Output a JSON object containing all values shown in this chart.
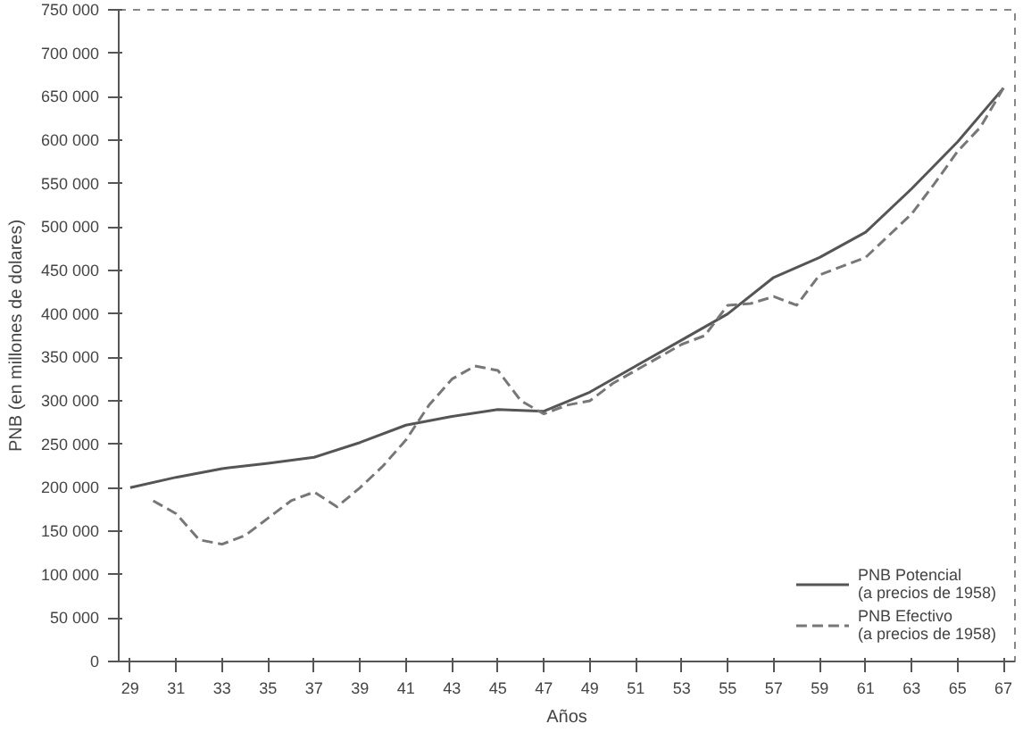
{
  "chart_data": {
    "type": "line",
    "xlabel": "Años",
    "ylabel": "PNB (en millones de dolares)",
    "xlim": [
      28.5,
      67.5
    ],
    "xticks": [
      {
        "value": 29,
        "label": "29"
      },
      {
        "value": 31,
        "label": "31"
      },
      {
        "value": 33,
        "label": "33"
      },
      {
        "value": 35,
        "label": "35"
      },
      {
        "value": 37,
        "label": "37"
      },
      {
        "value": 39,
        "label": "39"
      },
      {
        "value": 41,
        "label": "41"
      },
      {
        "value": 43,
        "label": "43"
      },
      {
        "value": 45,
        "label": "45"
      },
      {
        "value": 47,
        "label": "47"
      },
      {
        "value": 49,
        "label": "49"
      },
      {
        "value": 51,
        "label": "51"
      },
      {
        "value": 53,
        "label": "53"
      },
      {
        "value": 55,
        "label": "55"
      },
      {
        "value": 57,
        "label": "57"
      },
      {
        "value": 59,
        "label": "59"
      },
      {
        "value": 61,
        "label": "61"
      },
      {
        "value": 63,
        "label": "63"
      },
      {
        "value": 65,
        "label": "65"
      },
      {
        "value": 67,
        "label": "67"
      }
    ],
    "ylim": [
      0,
      750000
    ],
    "yticks": [
      {
        "value": 0,
        "label": "0"
      },
      {
        "value": 50000,
        "label": "50 000"
      },
      {
        "value": 100000,
        "label": "100 000"
      },
      {
        "value": 150000,
        "label": "150 000"
      },
      {
        "value": 200000,
        "label": "200 000"
      },
      {
        "value": 250000,
        "label": "250 000"
      },
      {
        "value": 300000,
        "label": "300 000"
      },
      {
        "value": 350000,
        "label": "350 000"
      },
      {
        "value": 400000,
        "label": "400 000"
      },
      {
        "value": 450000,
        "label": "450 000"
      },
      {
        "value": 500000,
        "label": "500 000"
      },
      {
        "value": 550000,
        "label": "550 000"
      },
      {
        "value": 600000,
        "label": "600 000"
      },
      {
        "value": 650000,
        "label": "650 000"
      },
      {
        "value": 700000,
        "label": "700 000"
      },
      {
        "value": 750000,
        "label": "750 000"
      }
    ],
    "grid": false,
    "legend": "bottom right",
    "series": [
      {
        "name": "PNB Potencial\n(a precios de 1958)",
        "color": "#555555",
        "line_style": "solid",
        "x": [
          29,
          31,
          33,
          35,
          37,
          39,
          41,
          43,
          45,
          47,
          49,
          51,
          53,
          55,
          57,
          59,
          61,
          63,
          65,
          67
        ],
        "values": [
          200000,
          212000,
          222000,
          228000,
          235000,
          252000,
          272000,
          282000,
          290000,
          288000,
          310000,
          340000,
          370000,
          400000,
          442000,
          465000,
          494000,
          544000,
          598000,
          660000
        ]
      },
      {
        "name": "PNB Efectivo\n(a precios de 1958)",
        "color": "#777777",
        "line_style": "dashed",
        "x": [
          30,
          31,
          32,
          33,
          34,
          35,
          36,
          37,
          38,
          39,
          40,
          41,
          42,
          43,
          44,
          45,
          46,
          47,
          48,
          49,
          50,
          51,
          52,
          53,
          54,
          55,
          56,
          57,
          58,
          59,
          60,
          61,
          62,
          63,
          64,
          65,
          66,
          67
        ],
        "values": [
          185000,
          170000,
          140000,
          135000,
          145000,
          165000,
          185000,
          195000,
          178000,
          200000,
          225000,
          255000,
          295000,
          325000,
          340000,
          335000,
          300000,
          285000,
          295000,
          300000,
          320000,
          335000,
          350000,
          365000,
          375000,
          410000,
          412000,
          420000,
          410000,
          445000,
          455000,
          465000,
          490000,
          515000,
          550000,
          587000,
          615000,
          660000
        ]
      }
    ]
  }
}
